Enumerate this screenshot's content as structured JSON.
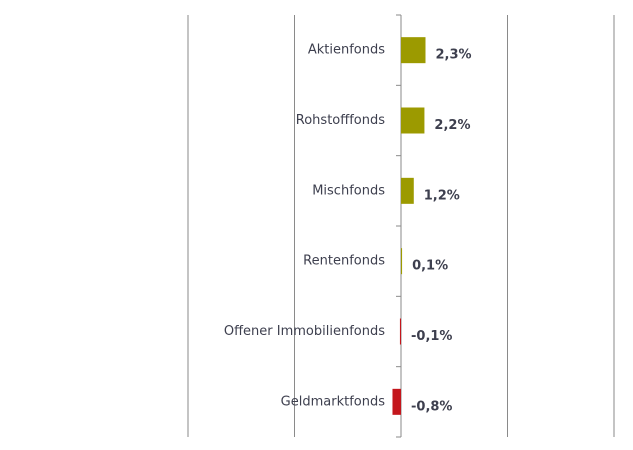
{
  "chart_data": {
    "type": "hbar",
    "categories": [
      "Aktienfonds",
      "Rohstofffonds",
      "Mischfonds",
      "Rentenfonds",
      "Offener Immobilienfonds",
      "Geldmarktfonds"
    ],
    "values": [
      2.3,
      2.2,
      1.2,
      0.1,
      -0.1,
      -0.8
    ],
    "value_labels": [
      "2,3%",
      "2,2%",
      "1,2%",
      "0,1%",
      "-0,1%",
      "-0,8%"
    ],
    "colors": [
      "#9c9a00",
      "#9c9a00",
      "#9c9a00",
      "#9c9a00",
      "#c4161c",
      "#c4161c"
    ],
    "xlim": [
      -20,
      20
    ],
    "xticks": [
      -20,
      -10,
      0,
      10,
      20
    ],
    "grid": true
  }
}
